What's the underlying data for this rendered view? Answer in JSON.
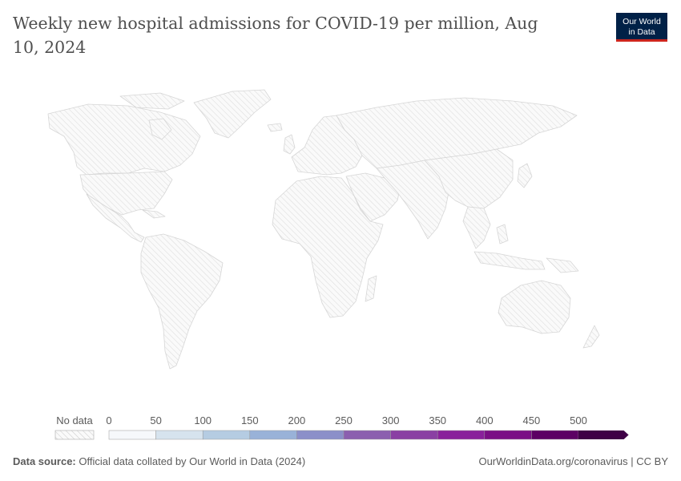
{
  "title": "Weekly new hospital admissions for COVID-19 per million, Aug 10, 2024",
  "logo": {
    "line1": "Our World",
    "line2": "in Data",
    "bg": "#002147",
    "accent": "#ce261e"
  },
  "legend": {
    "no_data_label": "No data",
    "ticks": [
      "0",
      "50",
      "100",
      "150",
      "200",
      "250",
      "300",
      "350",
      "400",
      "450",
      "500"
    ],
    "bins": [
      {
        "from": 0,
        "to": 50,
        "color": "#f6f8fb"
      },
      {
        "from": 50,
        "to": 100,
        "color": "#d6e3ee"
      },
      {
        "from": 100,
        "to": 150,
        "color": "#b5cce2"
      },
      {
        "from": 150,
        "to": 200,
        "color": "#99b2d8"
      },
      {
        "from": 200,
        "to": 250,
        "color": "#8b8fc9"
      },
      {
        "from": 250,
        "to": 300,
        "color": "#8b5faf"
      },
      {
        "from": 300,
        "to": 350,
        "color": "#8a3fa3"
      },
      {
        "from": 350,
        "to": 400,
        "color": "#89219b"
      },
      {
        "from": 400,
        "to": 450,
        "color": "#7a0f85"
      },
      {
        "from": 450,
        "to": 500,
        "color": "#5c0064"
      },
      {
        "from": 500,
        "to": null,
        "color": "#3f0046"
      }
    ]
  },
  "map": {
    "fill": "no-data-hatch",
    "border_color": "#d6d6d6"
  },
  "footer": {
    "source_label": "Data source:",
    "source_text": "Official data collated by Our World in Data (2024)",
    "link": "OurWorldinData.org/coronavirus",
    "license": "CC BY"
  }
}
